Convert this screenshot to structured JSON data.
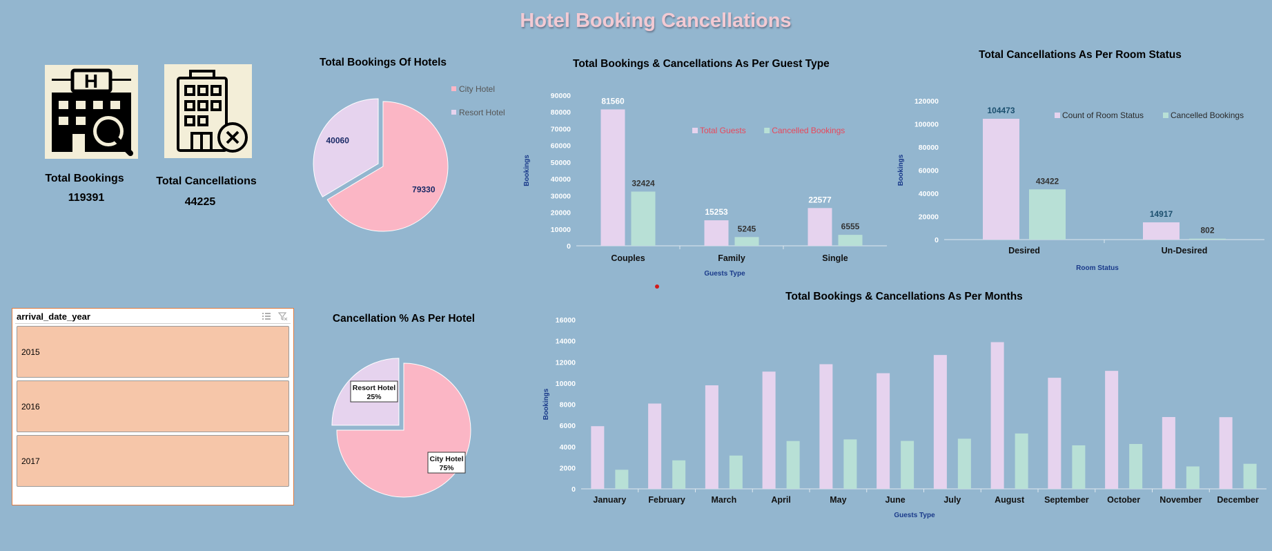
{
  "dashboard": {
    "title": "Hotel Booking Cancellations",
    "kpis": {
      "bookings_label": "Total Bookings",
      "bookings_value": "119391",
      "cancellations_label": "Total Cancellations",
      "cancellations_value": "44225"
    },
    "slicer": {
      "title": "arrival_date_year",
      "items": [
        "2015",
        "2016",
        "2017"
      ]
    },
    "colors": {
      "background": "#93b6cf",
      "lavender": "#e6d3ee",
      "mint": "#b8e0d6",
      "pink": "#fbb6c5",
      "title_pink": "#f2cad3"
    }
  },
  "chart_data": [
    {
      "id": "bookings_by_hotel",
      "type": "pie",
      "title": "Total Bookings Of Hotels",
      "labels": [
        "City Hotel",
        "Resort Hotel"
      ],
      "values": [
        79330,
        40060
      ],
      "colors": [
        "#fbb6c5",
        "#e6d3ee"
      ],
      "legend": "right"
    },
    {
      "id": "cancellation_pct_by_hotel",
      "type": "pie",
      "title": "Cancellation % As Per Hotel",
      "labels": [
        "City Hotel",
        "Resort Hotel"
      ],
      "values": [
        75,
        25
      ],
      "data_labels": [
        "75%",
        "25%"
      ],
      "colors": [
        "#fbb6c5",
        "#e6d3ee"
      ]
    },
    {
      "id": "guest_type",
      "type": "bar",
      "title": "Total Bookings & Cancellations As Per Guest Type",
      "categories": [
        "Couples",
        "Family",
        "Single"
      ],
      "series": [
        {
          "name": "Total Guests",
          "values": [
            81560,
            15253,
            22577
          ],
          "color": "#e6d3ee"
        },
        {
          "name": "Cancelled Bookings",
          "values": [
            32424,
            5245,
            6555
          ],
          "color": "#b8e0d6"
        }
      ],
      "xlabel": "Guests Type",
      "ylabel": "Bookings",
      "ylim": [
        0,
        90000
      ],
      "yticks": [
        "0",
        "10000",
        "20000",
        "30000",
        "40000",
        "50000",
        "60000",
        "70000",
        "80000",
        "90000"
      ],
      "legend": "top-right"
    },
    {
      "id": "room_status",
      "type": "bar",
      "title": "Total Cancellations As Per Room Status",
      "categories": [
        "Desired",
        "Un-Desired"
      ],
      "series": [
        {
          "name": "Count of Room Status",
          "values": [
            104473,
            14917
          ],
          "color": "#e6d3ee"
        },
        {
          "name": "Cancelled Bookings",
          "values": [
            43422,
            802
          ],
          "color": "#b8e0d6"
        }
      ],
      "xlabel": "Room Status",
      "ylabel": "Bookings",
      "ylim": [
        0,
        120000
      ],
      "yticks": [
        "0",
        "20000",
        "40000",
        "60000",
        "80000",
        "100000",
        "120000"
      ],
      "legend": "top-right"
    },
    {
      "id": "months",
      "type": "bar",
      "title": "Total Bookings & Cancellations As Per Months",
      "categories": [
        "January",
        "February",
        "March",
        "April",
        "May",
        "June",
        "July",
        "August",
        "September",
        "October",
        "November",
        "December"
      ],
      "series": [
        {
          "values": [
            5929,
            8068,
            9794,
            11089,
            11791,
            10939,
            12661,
            13877,
            10508,
            11160,
            6794,
            6780
          ],
          "color": "#e6d3ee"
        },
        {
          "values": [
            1807,
            2696,
            3149,
            4524,
            4677,
            4535,
            4742,
            5239,
            4116,
            4246,
            2122,
            2371
          ],
          "color": "#b8e0d6"
        }
      ],
      "xlabel": "Guests Type",
      "ylabel": "Bookings",
      "ylim": [
        0,
        16000
      ],
      "yticks": [
        "0",
        "2000",
        "4000",
        "6000",
        "8000",
        "10000",
        "12000",
        "14000",
        "16000"
      ]
    }
  ]
}
